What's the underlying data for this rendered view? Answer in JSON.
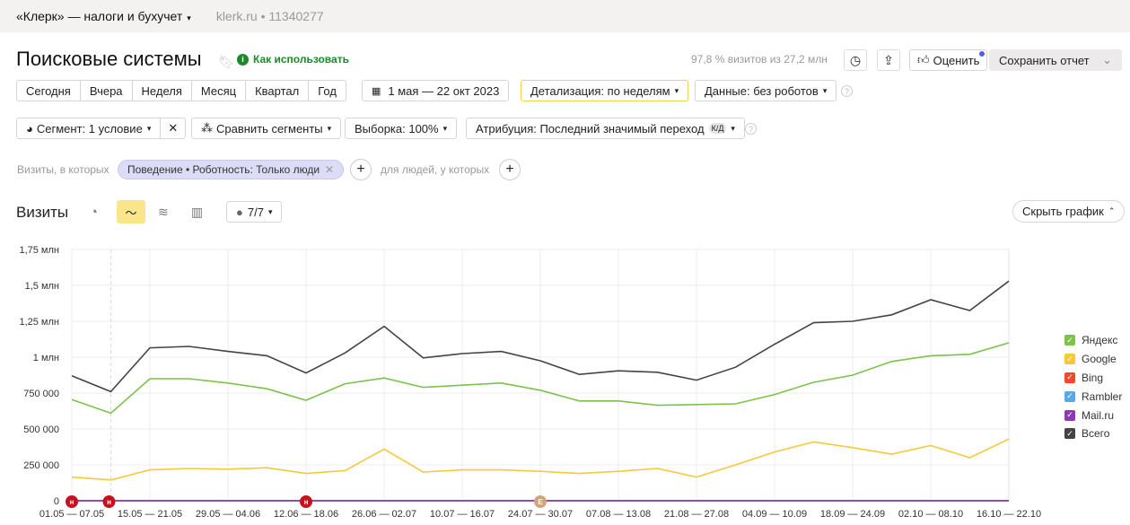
{
  "topbar": {
    "site": "«Клерк» — налоги и бухучет",
    "meta": "klerk.ru • 11340277"
  },
  "header": {
    "title": "Поисковые системы",
    "how_to": "Как использовать",
    "visits_info": "97,8 % визитов из 27,2 млн",
    "rate": "Оценить",
    "save": "Сохранить отчет"
  },
  "periods": [
    "Сегодня",
    "Вчера",
    "Неделя",
    "Месяц",
    "Квартал",
    "Год"
  ],
  "date_range": "1 мая — 22 окт 2023",
  "detail": "Детализация: по неделям",
  "data_filter": "Данные: без роботов",
  "segment": "Сегмент: 1 условие",
  "compare": "Сравнить сегменты",
  "sample": "Выборка: 100%",
  "attribution": "Атрибуция: Последний значимый переход",
  "attribution_badge": "К/Д",
  "filter": {
    "prefix": "Визиты, в которых",
    "chip": "Поведение • Роботность: Только люди",
    "people": "для людей, у которых"
  },
  "chart_header": {
    "metric": "Визиты",
    "annotations": "7/7",
    "hide": "Скрыть график"
  },
  "colors": {
    "yandex": "#7cc24b",
    "google": "#f5c93a",
    "bing": "#ef4a29",
    "rambler": "#58a9e8",
    "mailru": "#8e3ab0",
    "total": "#444444"
  },
  "chart_data": {
    "type": "line",
    "ylim": [
      0,
      1750000
    ],
    "yticks": [
      0,
      250000,
      500000,
      750000,
      1000000,
      1250000,
      1500000,
      1750000
    ],
    "ytick_labels": [
      "0",
      "250 000",
      "500 000",
      "750 000",
      "1 млн",
      "1,25 млн",
      "1,5 млн",
      "1,75 млн"
    ],
    "xtick_labels": [
      "01.05 — 07.05",
      "15.05 — 21.05",
      "29.05 — 04.06",
      "12.06 — 18.06",
      "26.06 — 02.07",
      "10.07 — 16.07",
      "24.07 — 30.07",
      "07.08 — 13.08",
      "21.08 — 27.08",
      "04.09 — 10.09",
      "18.09 — 24.09",
      "02.10 — 08.10",
      "16.10 — 22.10"
    ],
    "n_points": 25,
    "series": [
      {
        "name": "Яндекс",
        "color": "#7cc24b",
        "values": [
          705000,
          610000,
          850000,
          850000,
          820000,
          780000,
          700000,
          815000,
          855000,
          790000,
          805000,
          820000,
          770000,
          695000,
          695000,
          665000,
          670000,
          675000,
          740000,
          825000,
          875000,
          970000,
          1010000,
          1020000,
          1100000
        ]
      },
      {
        "name": "Google",
        "color": "#f5c93a",
        "values": [
          165000,
          145000,
          215000,
          225000,
          220000,
          230000,
          190000,
          210000,
          360000,
          200000,
          215000,
          215000,
          205000,
          190000,
          205000,
          225000,
          165000,
          250000,
          340000,
          410000,
          370000,
          325000,
          385000,
          300000,
          430000
        ]
      },
      {
        "name": "Bing",
        "color": "#ef4a29",
        "values": [
          0,
          0,
          0,
          0,
          0,
          0,
          0,
          0,
          0,
          0,
          0,
          0,
          0,
          0,
          0,
          0,
          0,
          0,
          0,
          0,
          0,
          0,
          0,
          0,
          0
        ]
      },
      {
        "name": "Rambler",
        "color": "#58a9e8",
        "values": [
          0,
          0,
          0,
          0,
          0,
          0,
          0,
          0,
          0,
          0,
          0,
          0,
          0,
          0,
          0,
          0,
          0,
          0,
          0,
          0,
          0,
          0,
          0,
          0,
          0
        ]
      },
      {
        "name": "Mail.ru",
        "color": "#8e3ab0",
        "values": [
          1000,
          1000,
          1000,
          1000,
          1000,
          1000,
          1000,
          1000,
          1000,
          1000,
          1000,
          1000,
          1000,
          1000,
          1000,
          1000,
          1000,
          1000,
          1000,
          1000,
          1000,
          1000,
          1000,
          1000,
          1000
        ]
      },
      {
        "name": "Всего",
        "color": "#444444",
        "values": [
          870000,
          760000,
          1065000,
          1075000,
          1040000,
          1010000,
          890000,
          1030000,
          1215000,
          995000,
          1025000,
          1040000,
          975000,
          880000,
          905000,
          895000,
          840000,
          930000,
          1090000,
          1240000,
          1250000,
          1295000,
          1400000,
          1325000,
          1530000
        ]
      }
    ],
    "annotations": [
      {
        "index": 0,
        "label": "н"
      },
      {
        "index": 1,
        "label": "н"
      },
      {
        "index": 6,
        "label": "н"
      },
      {
        "index": 12,
        "label": "Е"
      }
    ]
  }
}
